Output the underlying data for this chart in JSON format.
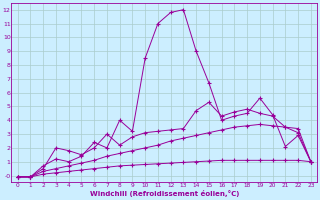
{
  "xlabel": "Windchill (Refroidissement éolien,°C)",
  "bg_color": "#cceeff",
  "line_color": "#990099",
  "grid_color": "#aacccc",
  "xlim": [
    -0.5,
    23.5
  ],
  "ylim": [
    -0.5,
    12.5
  ],
  "xticks": [
    0,
    1,
    2,
    3,
    4,
    5,
    6,
    7,
    8,
    9,
    10,
    11,
    12,
    13,
    14,
    15,
    16,
    17,
    18,
    19,
    20,
    21,
    22,
    23
  ],
  "yticks": [
    0,
    1,
    2,
    3,
    4,
    5,
    6,
    7,
    8,
    9,
    10,
    11,
    12
  ],
  "yticklabels": [
    "-0",
    "1",
    "2",
    "3",
    "4",
    "5",
    "6",
    "7",
    "8",
    "9",
    "10",
    "11",
    "12"
  ],
  "line1_x": [
    0,
    1,
    2,
    3,
    4,
    5,
    6,
    7,
    8,
    9,
    10,
    11,
    12,
    13,
    14,
    15,
    16,
    17,
    18,
    19,
    20,
    21,
    22,
    23
  ],
  "line1_y": [
    -0.1,
    -0.1,
    0.7,
    1.2,
    1.0,
    1.4,
    2.4,
    2.0,
    4.0,
    3.2,
    8.5,
    11.0,
    11.8,
    12.0,
    9.0,
    6.7,
    4.0,
    4.3,
    4.5,
    5.6,
    4.4,
    2.1,
    2.9,
    1.0
  ],
  "line2_x": [
    0,
    1,
    2,
    3,
    4,
    5,
    6,
    7,
    8,
    9,
    10,
    11,
    12,
    13,
    14,
    15,
    16,
    17,
    18,
    19,
    20,
    21,
    22,
    23
  ],
  "line2_y": [
    -0.1,
    -0.1,
    0.5,
    2.0,
    1.8,
    1.5,
    2.0,
    3.0,
    2.2,
    2.8,
    3.1,
    3.2,
    3.3,
    3.4,
    4.7,
    5.3,
    4.3,
    4.6,
    4.8,
    4.5,
    4.3,
    3.5,
    3.1,
    1.0
  ],
  "line3_x": [
    0,
    1,
    2,
    3,
    4,
    5,
    6,
    7,
    8,
    9,
    10,
    11,
    12,
    13,
    14,
    15,
    16,
    17,
    18,
    19,
    20,
    21,
    22,
    23
  ],
  "line3_y": [
    -0.1,
    -0.1,
    0.3,
    0.5,
    0.7,
    0.9,
    1.1,
    1.4,
    1.6,
    1.8,
    2.0,
    2.2,
    2.5,
    2.7,
    2.9,
    3.1,
    3.3,
    3.5,
    3.6,
    3.7,
    3.6,
    3.5,
    3.4,
    1.0
  ],
  "line4_x": [
    0,
    1,
    2,
    3,
    4,
    5,
    6,
    7,
    8,
    9,
    10,
    11,
    12,
    13,
    14,
    15,
    16,
    17,
    18,
    19,
    20,
    21,
    22,
    23
  ],
  "line4_y": [
    -0.1,
    -0.1,
    0.1,
    0.2,
    0.3,
    0.4,
    0.5,
    0.6,
    0.7,
    0.75,
    0.8,
    0.85,
    0.9,
    0.95,
    1.0,
    1.05,
    1.1,
    1.1,
    1.1,
    1.1,
    1.1,
    1.1,
    1.1,
    1.0
  ]
}
